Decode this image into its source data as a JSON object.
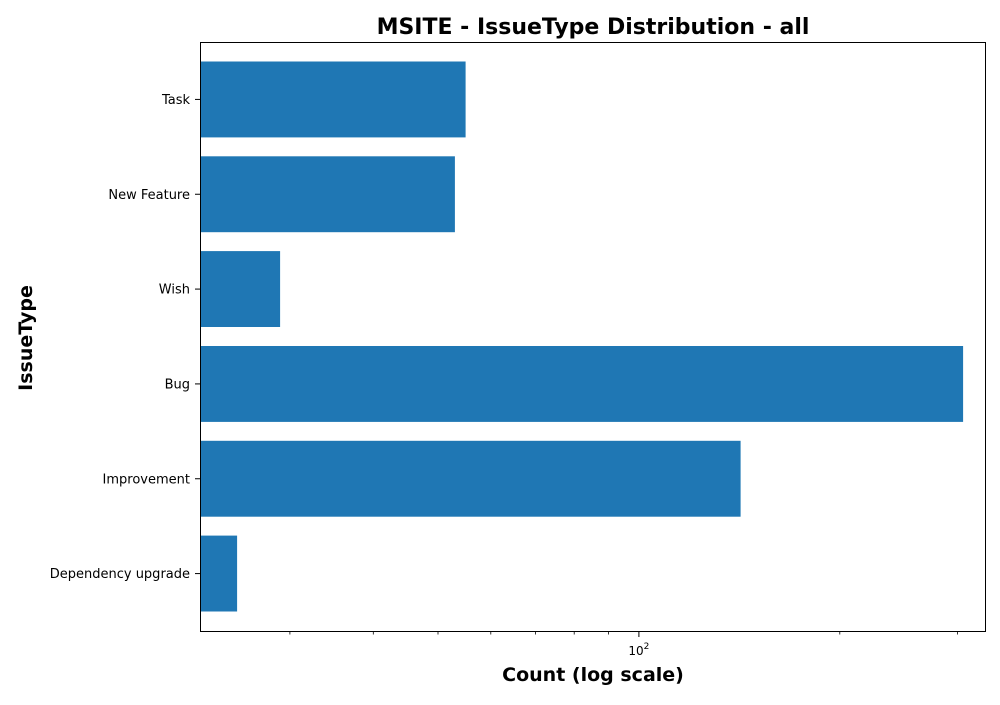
{
  "chart_data": {
    "type": "bar",
    "orientation": "horizontal",
    "title": "MSITE - IssueType Distribution - all",
    "xlabel": "Count (log scale)",
    "ylabel": "IssueType",
    "x_scale": "log",
    "xlim": [
      22,
      330
    ],
    "x_ticks": [
      {
        "value": 100,
        "base": "10",
        "exp": "2"
      }
    ],
    "x_minor_ticks": [
      30,
      40,
      50,
      60,
      70,
      80,
      90,
      200,
      300
    ],
    "categories": [
      "Task",
      "New Feature",
      "Wish",
      "Bug",
      "Improvement",
      "Dependency upgrade"
    ],
    "values": [
      55,
      53,
      29,
      306,
      142,
      25
    ],
    "bar_color": "#1f77b4",
    "grid": false,
    "legend": "none"
  }
}
